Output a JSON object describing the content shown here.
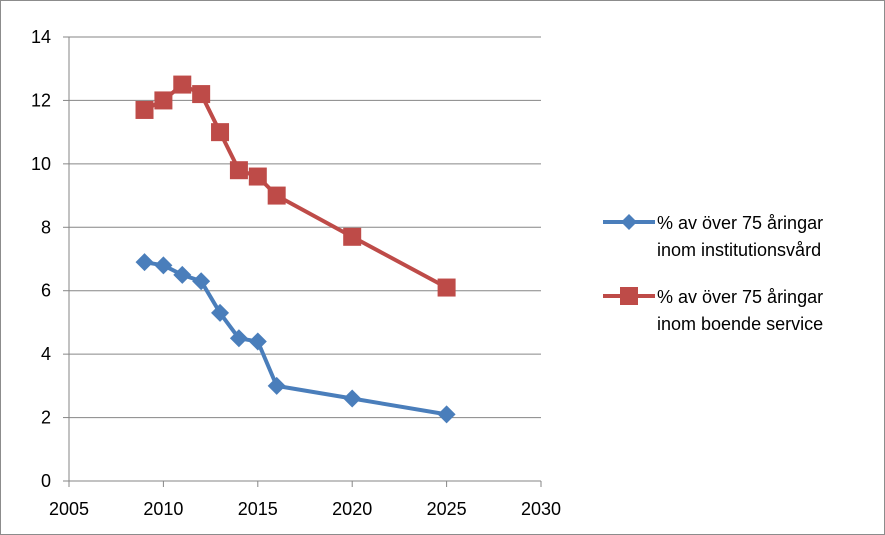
{
  "chart_data": {
    "type": "line",
    "title": "",
    "xlabel": "",
    "ylabel": "",
    "xlim": [
      2005,
      2030
    ],
    "ylim": [
      0,
      14
    ],
    "x_ticks": [
      "2005",
      "2010",
      "2015",
      "2020",
      "2025",
      "2030"
    ],
    "y_ticks": [
      "0",
      "2",
      "4",
      "6",
      "8",
      "10",
      "12",
      "14"
    ],
    "grid": "horizontal",
    "legend_position": "right",
    "series": [
      {
        "name": "% av över 75 åringar inom institutionsvård",
        "legend_lines": [
          "% av över 75 åringar",
          "inom institutionsvård"
        ],
        "color": "#4a7ebb",
        "marker": "diamond",
        "x": [
          2009,
          2010,
          2011,
          2012,
          2013,
          2014,
          2015,
          2016,
          2020,
          2025
        ],
        "values": [
          6.9,
          6.8,
          6.5,
          6.3,
          5.3,
          4.5,
          4.4,
          3.0,
          2.6,
          2.1
        ]
      },
      {
        "name": "% av över 75 åringar inom boende service",
        "legend_lines": [
          "% av över 75 åringar",
          "inom boende service"
        ],
        "color": "#be4b48",
        "marker": "square",
        "x": [
          2009,
          2010,
          2011,
          2012,
          2013,
          2014,
          2015,
          2016,
          2020,
          2025
        ],
        "values": [
          11.7,
          12.0,
          12.5,
          12.2,
          11.0,
          9.8,
          9.6,
          9.0,
          7.7,
          6.1
        ]
      }
    ]
  }
}
